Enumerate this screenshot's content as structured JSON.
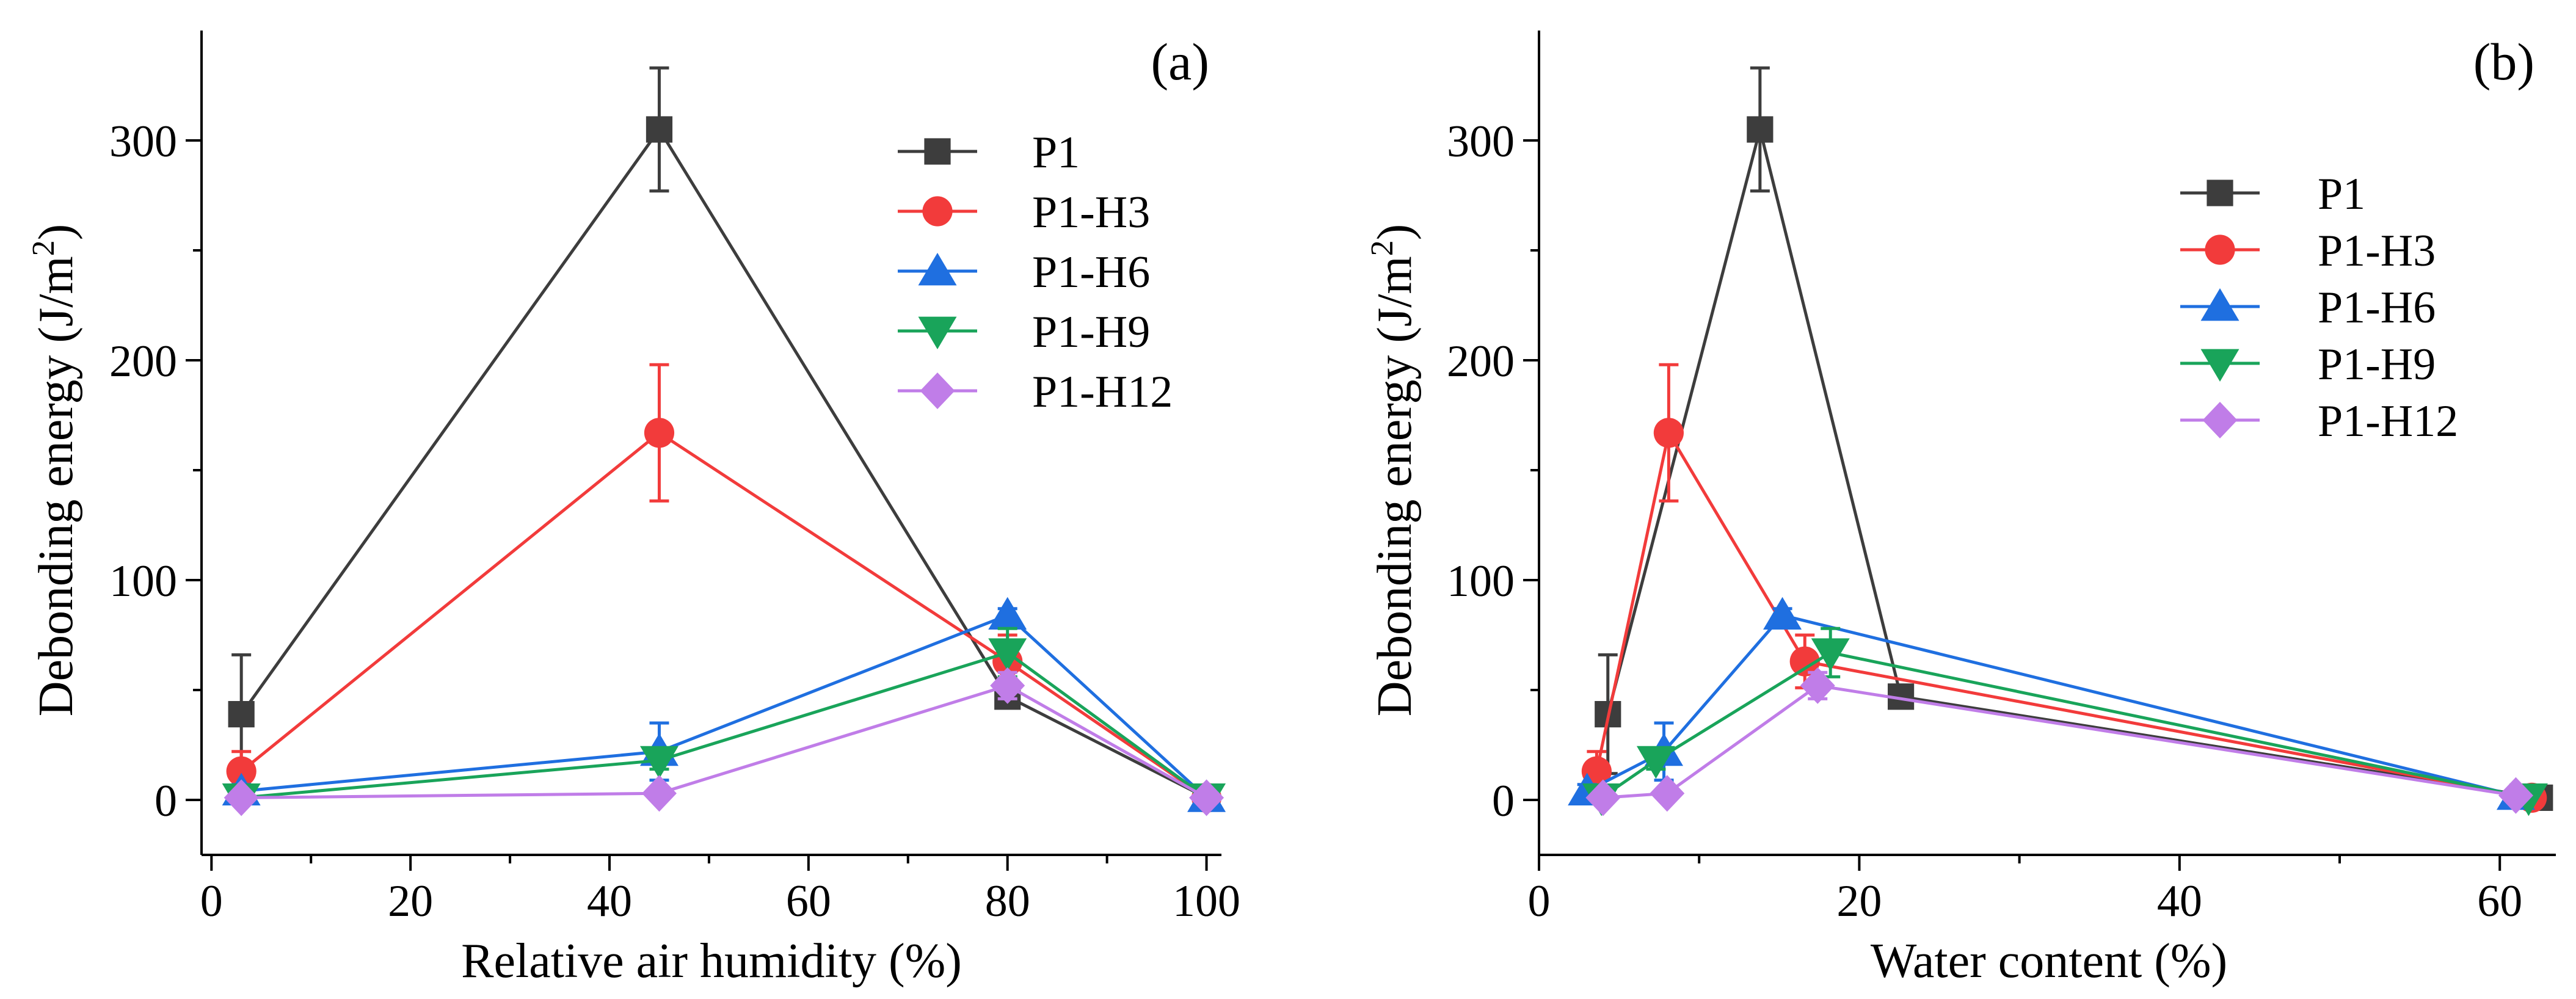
{
  "figure": {
    "colors": {
      "axis": "#000000",
      "background": "#ffffff"
    }
  },
  "chart_data": [
    {
      "type": "line",
      "panel_label": "(a)",
      "xlabel": "Relative air humidity (%)",
      "ylabel_main": "Debonding energy (J/m",
      "ylabel_sup": "2",
      "ylabel_tail": ")",
      "xlim": [
        -1,
        101.5
      ],
      "ylim": [
        -25,
        350
      ],
      "xticks": [
        0,
        20,
        40,
        60,
        80,
        100
      ],
      "xticks_minor": [
        10,
        30,
        50,
        70,
        90
      ],
      "yticks": [
        0,
        100,
        200,
        300
      ],
      "yticks_minor": [
        50,
        150,
        250
      ],
      "legend_position": "upper-right",
      "series": [
        {
          "name": "P1",
          "color": "#3d3d3d",
          "marker": "square",
          "points": [
            [
              3,
              39
            ],
            [
              45,
              305
            ],
            [
              80,
              47
            ],
            [
              100,
              1
            ]
          ],
          "errors": [
            27,
            28,
            3,
            2
          ]
        },
        {
          "name": "P1-H3",
          "color": "#f23b3b",
          "marker": "circle",
          "points": [
            [
              3,
              13
            ],
            [
              45,
              167
            ],
            [
              80,
              63
            ],
            [
              100,
              1
            ]
          ],
          "errors": [
            9,
            31,
            12,
            2
          ]
        },
        {
          "name": "P1-H6",
          "color": "#1f6fe0",
          "marker": "triangle-up",
          "points": [
            [
              3,
              4
            ],
            [
              45,
              22
            ],
            [
              80,
              84
            ],
            [
              100,
              1
            ]
          ],
          "errors": [
            3,
            13,
            3,
            2
          ]
        },
        {
          "name": "P1-H9",
          "color": "#19a45a",
          "marker": "triangle-down",
          "points": [
            [
              3,
              1
            ],
            [
              45,
              18
            ],
            [
              80,
              67
            ],
            [
              100,
              1
            ]
          ],
          "errors": [
            2,
            4,
            11,
            2
          ]
        },
        {
          "name": "P1-H12",
          "color": "#c07de8",
          "marker": "diamond",
          "points": [
            [
              3,
              1
            ],
            [
              45,
              3
            ],
            [
              80,
              52
            ],
            [
              100,
              1
            ]
          ],
          "errors": [
            2,
            2,
            6,
            2
          ]
        }
      ]
    },
    {
      "type": "line",
      "panel_label": "(b)",
      "xlabel": "Water content (%)",
      "ylabel_main": "Debonding energy (J/m",
      "ylabel_sup": "2",
      "ylabel_tail": ")",
      "xlim": [
        0,
        63.5
      ],
      "ylim": [
        -25,
        350
      ],
      "xticks": [
        0,
        20,
        40,
        60
      ],
      "xticks_minor": [
        10,
        30,
        50
      ],
      "yticks": [
        0,
        100,
        200,
        300
      ],
      "yticks_minor": [
        50,
        150,
        250
      ],
      "legend_position": "upper-right",
      "series": [
        {
          "name": "P1",
          "color": "#3d3d3d",
          "marker": "square",
          "points": [
            [
              4.3,
              39
            ],
            [
              13.8,
              305
            ],
            [
              22.6,
              47
            ],
            [
              62.5,
              1
            ]
          ],
          "errors": [
            27,
            28,
            3,
            2
          ]
        },
        {
          "name": "P1-H3",
          "color": "#f23b3b",
          "marker": "circle",
          "points": [
            [
              3.6,
              13
            ],
            [
              8.1,
              167
            ],
            [
              16.6,
              63
            ],
            [
              62.0,
              1
            ]
          ],
          "errors": [
            9,
            31,
            12,
            2
          ]
        },
        {
          "name": "P1-H6",
          "color": "#1f6fe0",
          "marker": "triangle-up",
          "points": [
            [
              3.0,
              4
            ],
            [
              7.8,
              22
            ],
            [
              15.2,
              84
            ],
            [
              61.0,
              2
            ]
          ],
          "errors": [
            3,
            13,
            3,
            2
          ]
        },
        {
          "name": "P1-H9",
          "color": "#19a45a",
          "marker": "triangle-down",
          "points": [
            [
              3.9,
              1
            ],
            [
              7.3,
              18
            ],
            [
              18.2,
              67
            ],
            [
              61.8,
              1
            ]
          ],
          "errors": [
            2,
            4,
            11,
            2
          ]
        },
        {
          "name": "P1-H12",
          "color": "#c07de8",
          "marker": "diamond",
          "points": [
            [
              4.0,
              1
            ],
            [
              8.0,
              3
            ],
            [
              17.4,
              52
            ],
            [
              61.0,
              2
            ]
          ],
          "errors": [
            2,
            2,
            6,
            2
          ]
        }
      ]
    }
  ]
}
